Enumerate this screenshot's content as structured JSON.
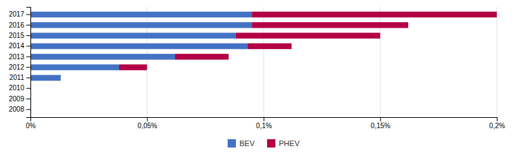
{
  "chart_data": {
    "type": "bar",
    "orientation": "horizontal",
    "stacked": true,
    "categories": [
      "2017",
      "2016",
      "2015",
      "2014",
      "2013",
      "2012",
      "2011",
      "2010",
      "2009",
      "2008"
    ],
    "series": [
      {
        "name": "BEV",
        "color": "#4472c4",
        "values": [
          0.00095,
          0.00095,
          0.00088,
          0.00093,
          0.00062,
          0.00038,
          0.00013,
          0.0,
          0.0,
          0.0
        ]
      },
      {
        "name": "PHEV",
        "color": "#b30045",
        "values": [
          0.00105,
          0.00067,
          0.00062,
          0.00019,
          0.00023,
          0.00012,
          0.0,
          0.0,
          0.0,
          0.0
        ]
      }
    ],
    "xlim": [
      0,
      0.002
    ],
    "xticks": [
      {
        "value": 0,
        "label": "0%"
      },
      {
        "value": 0.0005,
        "label": "0,05%"
      },
      {
        "value": 0.001,
        "label": "0,1%"
      },
      {
        "value": 0.0015,
        "label": "0,15%"
      },
      {
        "value": 0.002,
        "label": "0,2%"
      }
    ],
    "grid": true,
    "legend": "bottom"
  }
}
